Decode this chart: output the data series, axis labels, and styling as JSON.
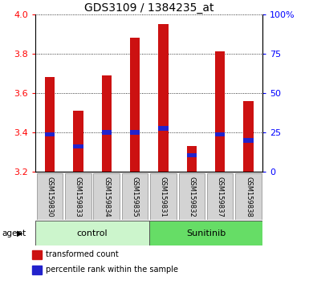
{
  "title": "GDS3109 / 1384235_at",
  "samples": [
    "GSM159830",
    "GSM159833",
    "GSM159834",
    "GSM159835",
    "GSM159831",
    "GSM159832",
    "GSM159837",
    "GSM159838"
  ],
  "red_values": [
    3.68,
    3.51,
    3.69,
    3.88,
    3.95,
    3.33,
    3.81,
    3.56
  ],
  "blue_values": [
    3.39,
    3.33,
    3.4,
    3.4,
    3.42,
    3.285,
    3.39,
    3.36
  ],
  "y_min": 3.2,
  "y_max": 4.0,
  "y_ticks_left": [
    3.2,
    3.4,
    3.6,
    3.8,
    4.0
  ],
  "y_ticks_right": [
    0,
    25,
    50,
    75,
    100
  ],
  "groups": [
    {
      "label": "control",
      "start": 0,
      "end": 4,
      "color": "#ccf5cc"
    },
    {
      "label": "Sunitinib",
      "start": 4,
      "end": 8,
      "color": "#66dd66"
    }
  ],
  "bar_color": "#cc1111",
  "blue_color": "#2222cc",
  "bar_width": 0.35,
  "legend_items": [
    {
      "color": "#cc1111",
      "label": "transformed count"
    },
    {
      "color": "#2222cc",
      "label": "percentile rank within the sample"
    }
  ],
  "title_fontsize": 10,
  "axis_fontsize": 8,
  "tick_fontsize": 8,
  "label_fontsize": 8,
  "sample_fontsize": 6
}
